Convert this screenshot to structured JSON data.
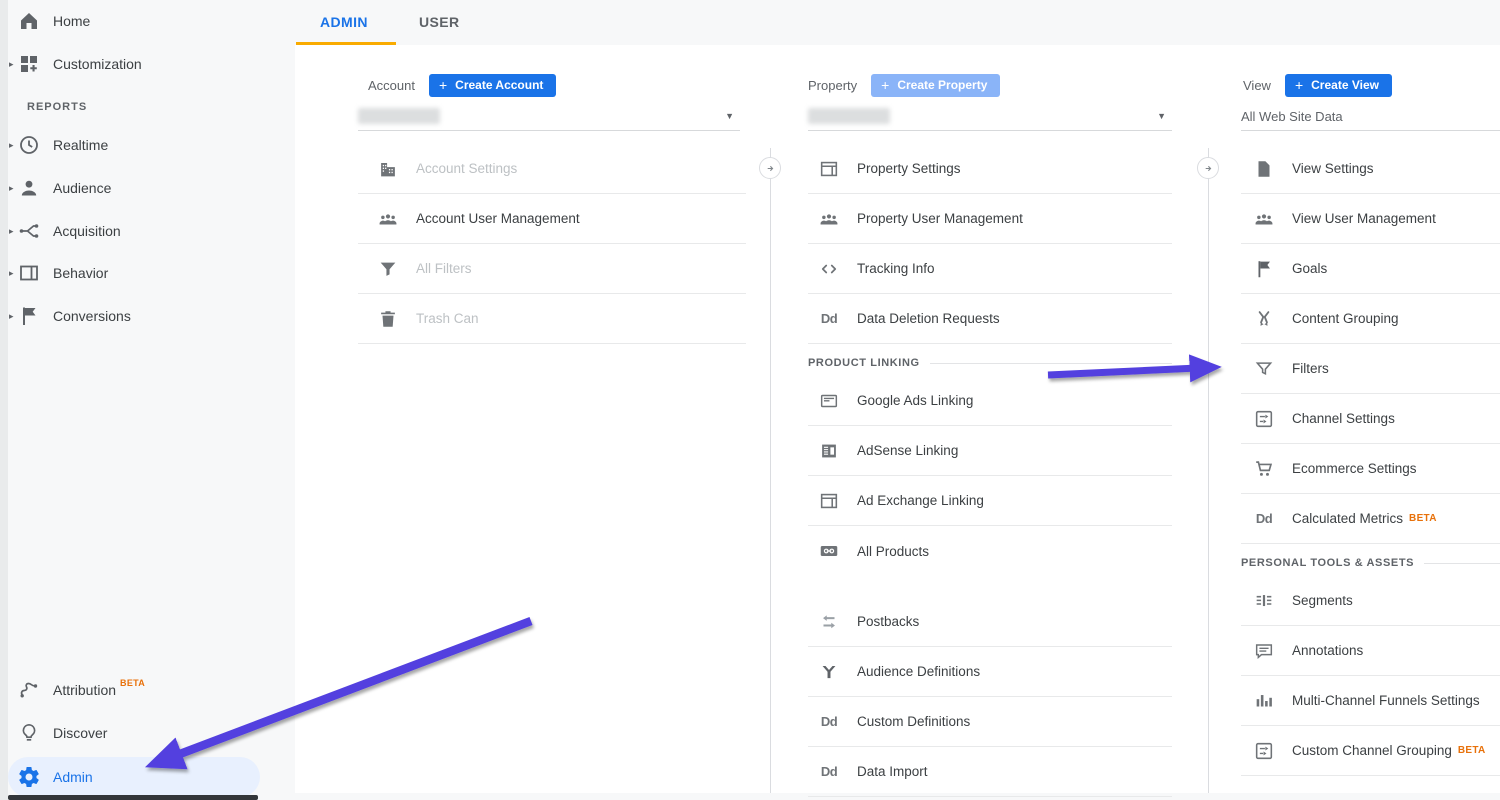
{
  "tabs": {
    "admin": "ADMIN",
    "user": "USER"
  },
  "badges": {
    "beta": "BETA"
  },
  "sidebar": {
    "reports_header": "REPORTS",
    "items": [
      {
        "label": "Home"
      },
      {
        "label": "Customization"
      },
      {
        "label": "Realtime"
      },
      {
        "label": "Audience"
      },
      {
        "label": "Acquisition"
      },
      {
        "label": "Behavior"
      },
      {
        "label": "Conversions"
      },
      {
        "label": "Attribution",
        "beta": true
      },
      {
        "label": "Discover"
      },
      {
        "label": "Admin",
        "selected": true
      }
    ]
  },
  "account": {
    "title": "Account",
    "create_button": "Create Account",
    "selector_value_redacted": true,
    "items": [
      {
        "label": "Account Settings",
        "disabled": true
      },
      {
        "label": "Account User Management",
        "disabled": false
      },
      {
        "label": "All Filters",
        "disabled": true
      },
      {
        "label": "Trash Can",
        "disabled": true
      }
    ]
  },
  "property": {
    "title": "Property",
    "create_button": "Create Property",
    "selector_value_redacted": true,
    "product_linking_header": "PRODUCT LINKING",
    "items": [
      {
        "label": "Property Settings"
      },
      {
        "label": "Property User Management"
      },
      {
        "label": "Tracking Info"
      },
      {
        "label": "Data Deletion Requests"
      },
      {
        "label": "Google Ads Linking"
      },
      {
        "label": "AdSense Linking"
      },
      {
        "label": "Ad Exchange Linking"
      },
      {
        "label": "All Products"
      },
      {
        "label": "Postbacks"
      },
      {
        "label": "Audience Definitions"
      },
      {
        "label": "Custom Definitions"
      },
      {
        "label": "Data Import"
      }
    ]
  },
  "view": {
    "title": "View",
    "create_button": "Create View",
    "selected_view": "All Web Site Data",
    "personal_tools_header": "PERSONAL TOOLS & ASSETS",
    "items": [
      {
        "label": "View Settings"
      },
      {
        "label": "View User Management"
      },
      {
        "label": "Goals"
      },
      {
        "label": "Content Grouping"
      },
      {
        "label": "Filters"
      },
      {
        "label": "Channel Settings"
      },
      {
        "label": "Ecommerce Settings"
      },
      {
        "label": "Calculated Metrics",
        "beta": true
      },
      {
        "label": "Segments"
      },
      {
        "label": "Annotations"
      },
      {
        "label": "Multi-Channel Funnels Settings"
      },
      {
        "label": "Custom Channel Grouping",
        "beta": true
      }
    ]
  },
  "colors": {
    "accent_blue": "#1a73e8",
    "tab_underline_orange": "#f9ab00",
    "beta_orange": "#e8710a",
    "annotation_arrow_purple": "#5240df",
    "disabled_create_button_blue": "#8ab4f8",
    "admin_highlight_pill": "#e8f0fe"
  }
}
